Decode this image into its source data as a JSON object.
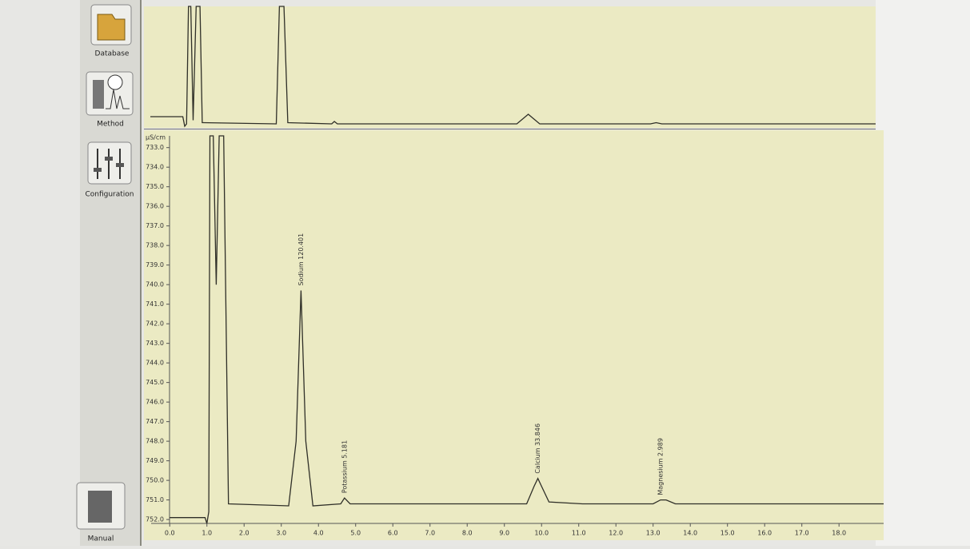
{
  "sidebar": {
    "buttons": [
      "Database",
      "Method",
      "Configuration",
      "Manual"
    ]
  },
  "chart_data": [
    {
      "type": "line",
      "x": [
        0,
        0.85,
        0.9,
        0.95,
        1.0,
        1.06,
        1.12,
        1.2,
        1.3,
        1.36,
        3.3,
        3.38,
        3.5,
        3.6,
        4.75,
        4.82,
        4.9,
        9.6,
        9.9,
        10.2,
        13.1,
        13.25,
        13.4,
        19
      ],
      "values": [
        8,
        8,
        0,
        2,
        100,
        100,
        5,
        100,
        100,
        3,
        2,
        100,
        100,
        3,
        2,
        4,
        2,
        2,
        10,
        2,
        2,
        3,
        2,
        2
      ],
      "color": "#2f2f28",
      "xlim": [
        0,
        19
      ],
      "ylim": [
        0,
        100
      ]
    },
    {
      "type": "line",
      "y_label": "µS/cm",
      "x": [
        0,
        0.95,
        1.0,
        1.05,
        1.08,
        1.17,
        1.25,
        1.33,
        1.45,
        1.58,
        3.2,
        3.4,
        3.53,
        3.66,
        3.85,
        4.6,
        4.7,
        4.85,
        9.6,
        9.8,
        9.9,
        10.0,
        10.2,
        11.1,
        13.0,
        13.2,
        13.35,
        13.6,
        19.2
      ],
      "values": [
        751.9,
        751.9,
        752.2,
        751.6,
        732.4,
        732.4,
        740,
        732.4,
        732.4,
        751.2,
        751.3,
        748,
        740.3,
        748,
        751.3,
        751.2,
        750.9,
        751.2,
        751.2,
        750.3,
        749.9,
        750.3,
        751.1,
        751.2,
        751.2,
        751.0,
        751.0,
        751.2,
        751.2
      ],
      "color": "#2f2f28",
      "xlim": [
        -0.5,
        19.2
      ],
      "ylim": [
        752.2,
        732.4
      ],
      "yticks": [
        {
          "value": 733,
          "label": "733.0"
        },
        {
          "value": 734,
          "label": "734.0"
        },
        {
          "value": 735,
          "label": "735.0"
        },
        {
          "value": 736,
          "label": "736.0"
        },
        {
          "value": 737,
          "label": "737.0"
        },
        {
          "value": 738,
          "label": "738.0"
        },
        {
          "value": 739,
          "label": "739.0"
        },
        {
          "value": 740,
          "label": "740.0"
        },
        {
          "value": 741,
          "label": "741.0"
        },
        {
          "value": 742,
          "label": "742.0"
        },
        {
          "value": 743,
          "label": "743.0"
        },
        {
          "value": 744,
          "label": "744.0"
        },
        {
          "value": 745,
          "label": "745.0"
        },
        {
          "value": 746,
          "label": "746.0"
        },
        {
          "value": 747,
          "label": "747.0"
        },
        {
          "value": 748,
          "label": "748.0"
        },
        {
          "value": 749,
          "label": "749.0"
        },
        {
          "value": 750,
          "label": "750.0"
        },
        {
          "value": 751,
          "label": "751.0"
        },
        {
          "value": 752,
          "label": "752.0"
        }
      ],
      "xticks": [
        {
          "value": 0,
          "label": "0.0"
        },
        {
          "value": 1,
          "label": "1.0"
        },
        {
          "value": 2,
          "label": "2.0"
        },
        {
          "value": 3,
          "label": "3.0"
        },
        {
          "value": 4,
          "label": "4.0"
        },
        {
          "value": 5,
          "label": "5.0"
        },
        {
          "value": 6,
          "label": "6.0"
        },
        {
          "value": 7,
          "label": "7.0"
        },
        {
          "value": 8,
          "label": "8.0"
        },
        {
          "value": 9,
          "label": "9.0"
        },
        {
          "value": 10,
          "label": "10.0"
        },
        {
          "value": 11,
          "label": "11.0"
        },
        {
          "value": 12,
          "label": "12.0"
        },
        {
          "value": 13,
          "label": "13.0"
        },
        {
          "value": 14,
          "label": "14.0"
        },
        {
          "value": 15,
          "label": "15.0"
        },
        {
          "value": 16,
          "label": "16.0"
        },
        {
          "value": 17,
          "label": "17.0"
        },
        {
          "value": 18,
          "label": "18.0"
        }
      ],
      "annotations": [
        {
          "text": "Sodium 120.401",
          "x": 3.53,
          "y": 740.3
        },
        {
          "text": "Potassium 5.181",
          "x": 4.7,
          "y": 750.9
        },
        {
          "text": "Calcium 33.846",
          "x": 9.9,
          "y": 749.9
        },
        {
          "text": "Magnesium 2.989",
          "x": 13.2,
          "y": 751.0
        }
      ]
    }
  ]
}
